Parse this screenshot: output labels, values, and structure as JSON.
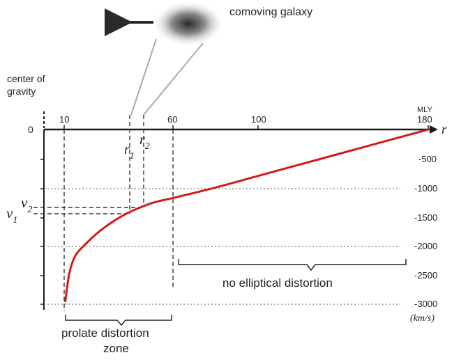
{
  "galaxy_label": "comoving galaxy",
  "center_label_line1": "center of",
  "center_label_line2": "gravity",
  "x_unit": "MLY",
  "x_axis_symbol": "r",
  "x_ticks": [
    "10",
    "60",
    "100",
    "180"
  ],
  "origin_label": "0",
  "y_ticks": [
    "-500",
    "-1000",
    "-1500",
    "-2000",
    "-2500",
    "-3000"
  ],
  "y_unit": "(km/s)",
  "r1_label": "r",
  "r1_sub": "1",
  "r2_label": "r",
  "r2_sub": "2",
  "v1_label": "ν",
  "v1_sub": "1",
  "v2_label": "ν",
  "v2_sub": "2",
  "region_no_distortion": "no elliptical distortion",
  "region_prolate_line1": "prolate distortion",
  "region_prolate_line2": "zone",
  "colors": {
    "curve": "#d11a1a",
    "axis": "#1a1a1a",
    "guide": "#555555"
  },
  "chart_data": {
    "type": "line",
    "x": [
      10,
      12,
      15,
      20,
      25,
      30,
      35,
      40,
      45,
      50,
      55,
      60,
      80,
      100,
      120,
      140,
      160,
      180
    ],
    "y": [
      -2950,
      -2450,
      -2150,
      -1950,
      -1780,
      -1640,
      -1520,
      -1420,
      -1340,
      -1270,
      -1220,
      -1180,
      -1000,
      -800,
      -600,
      -400,
      -200,
      0
    ],
    "xlim": [
      0,
      180
    ],
    "ylim": [
      -3000,
      0
    ]
  }
}
